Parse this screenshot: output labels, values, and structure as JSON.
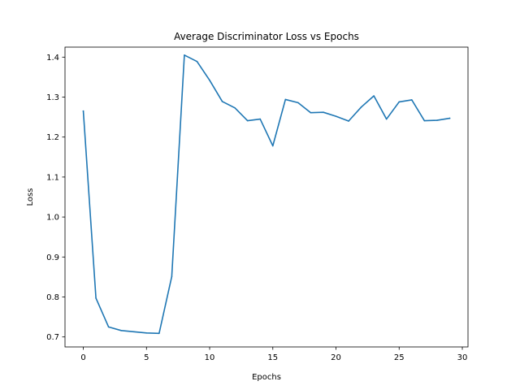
{
  "chart_data": {
    "type": "line",
    "title": "Average Discriminator Loss vs Epochs",
    "xlabel": "Epochs",
    "ylabel": "Loss",
    "xlim": [
      -1.45,
      30.45
    ],
    "ylim": [
      0.675,
      1.425
    ],
    "xticks": [
      0,
      5,
      10,
      15,
      20,
      25,
      30
    ],
    "yticks": [
      0.7,
      0.8,
      0.9,
      1.0,
      1.1,
      1.2,
      1.3,
      1.4
    ],
    "xtick_labels": [
      "0",
      "5",
      "10",
      "15",
      "20",
      "25",
      "30"
    ],
    "ytick_labels": [
      "0.7",
      "0.8",
      "0.9",
      "1.0",
      "1.1",
      "1.2",
      "1.3",
      "1.4"
    ],
    "grid": false,
    "legend": "none",
    "line_color": "#1f77b4",
    "x": [
      0,
      1,
      2,
      3,
      4,
      5,
      6,
      7,
      8,
      9,
      10,
      11,
      12,
      13,
      14,
      15,
      16,
      17,
      18,
      19,
      20,
      21,
      22,
      23,
      24,
      25,
      26,
      27,
      28,
      29
    ],
    "y": [
      1.265,
      0.797,
      0.725,
      0.716,
      0.713,
      0.71,
      0.709,
      0.851,
      1.405,
      1.389,
      1.342,
      1.289,
      1.273,
      1.241,
      1.245,
      1.178,
      1.294,
      1.286,
      1.261,
      1.262,
      1.252,
      1.24,
      1.275,
      1.303,
      1.245,
      1.288,
      1.293,
      1.241,
      1.242,
      1.247
    ]
  }
}
